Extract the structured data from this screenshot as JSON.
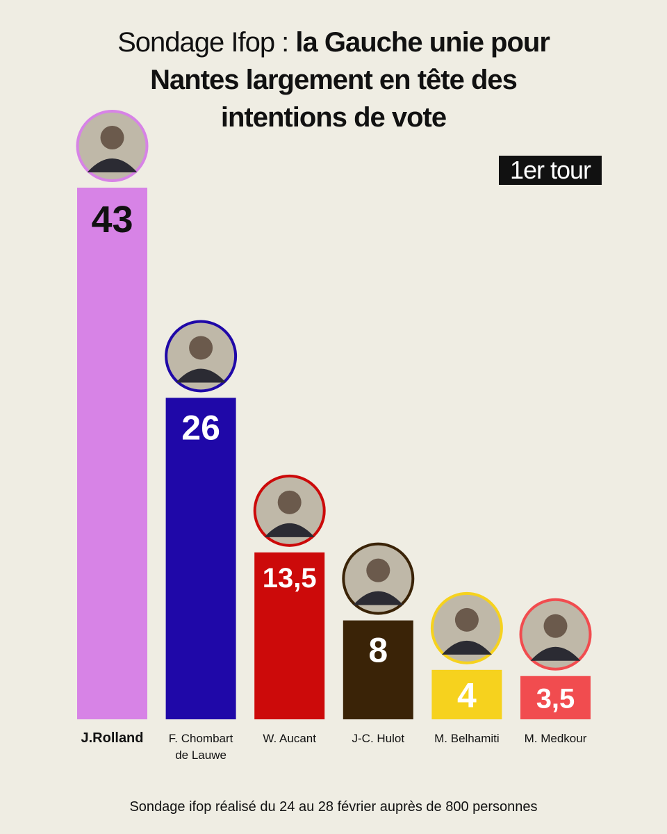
{
  "header": {
    "title_light": "Sondage Ifop : ",
    "title_bold_1": "la Gauche unie pour",
    "title_bold_2": "Nantes largement en tête des",
    "title_bold_3": "intentions de vote"
  },
  "badge": {
    "label": "1er tour"
  },
  "footer": {
    "note": "Sondage ifop réalisé du 24 au 28 février auprès de 800 personnes"
  },
  "chart_data": {
    "type": "bar",
    "categories": [
      "J.Rolland",
      "F. Chombart de Lauwe",
      "W. Aucant",
      "J-C. Hulot",
      "M. Belhamiti",
      "M. Medkour"
    ],
    "category_lines": [
      [
        "J.Rolland"
      ],
      [
        "F. Chombart",
        "de Lauwe"
      ],
      [
        "W. Aucant"
      ],
      [
        "J-C. Hulot"
      ],
      [
        "M. Belhamiti"
      ],
      [
        "M. Medkour"
      ]
    ],
    "values": [
      43,
      26,
      13.5,
      8,
      4,
      3.5
    ],
    "value_labels": [
      "43",
      "26",
      "13,5",
      "8",
      "4",
      "3,5"
    ],
    "colors": [
      "#d783e6",
      "#1f08a8",
      "#cc0a0a",
      "#3a2307",
      "#f6d21e",
      "#f14c4f"
    ],
    "label_colors": [
      "#111111",
      "#ffffff",
      "#ffffff",
      "#ffffff",
      "#ffffff",
      "#ffffff"
    ],
    "avatar_icons": [
      "portrait-icon",
      "portrait-icon",
      "portrait-icon",
      "portrait-icon",
      "portrait-icon",
      "portrait-icon"
    ],
    "ylim": [
      0,
      43
    ],
    "grid": false,
    "legend": "none"
  }
}
